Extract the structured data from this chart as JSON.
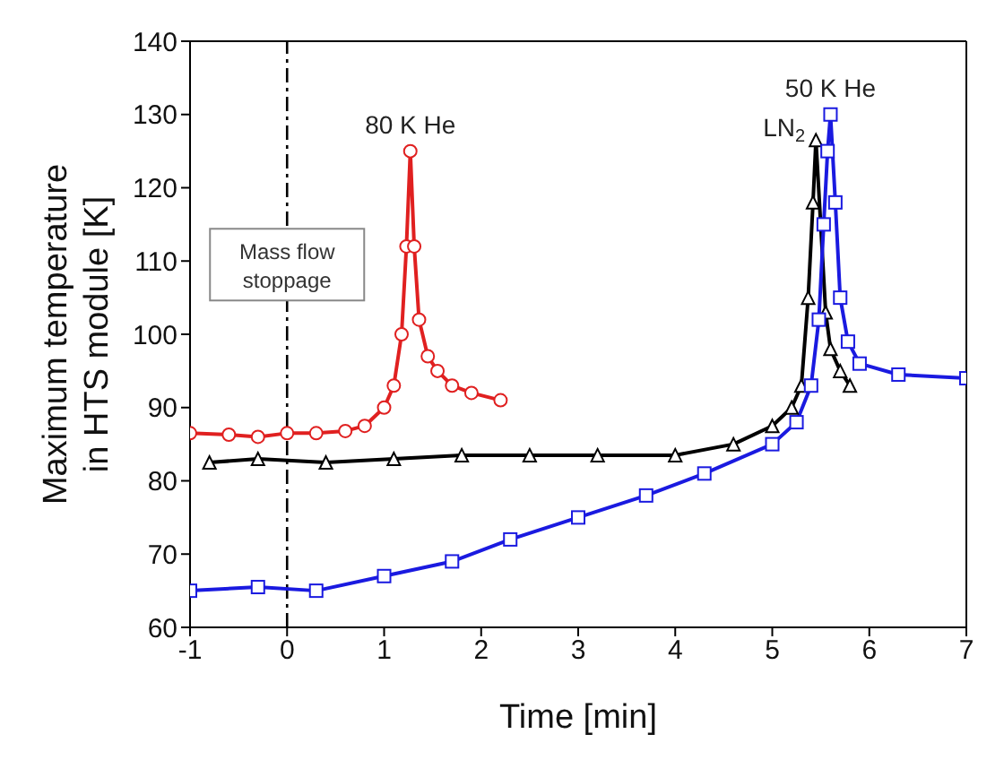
{
  "chart_data": {
    "type": "line",
    "xlabel": "Time  [min]",
    "ylabel": "Maximum temperature\nin HTS module  [K]",
    "xlim": [
      -1,
      7
    ],
    "xticks": [
      -1,
      0,
      1,
      2,
      3,
      4,
      5,
      6,
      7
    ],
    "ylim": [
      60,
      140
    ],
    "yticks": [
      60,
      70,
      80,
      90,
      100,
      110,
      120,
      130,
      140
    ],
    "line_style": "solid",
    "ref_lines": [
      {
        "axis": "x",
        "value": 0,
        "label": "Mass flow\nstoppage",
        "color": "#000000",
        "line_style": "dashdot"
      }
    ],
    "series": [
      {
        "name": "80 K He",
        "color": "#e02020",
        "marker": "circle",
        "x": [
          -1,
          -0.6,
          -0.3,
          0,
          0.3,
          0.6,
          0.8,
          1.0,
          1.1,
          1.18,
          1.23,
          1.27,
          1.31,
          1.36,
          1.45,
          1.55,
          1.7,
          1.9,
          2.2
        ],
        "values": [
          86.5,
          86.3,
          86,
          86.5,
          86.5,
          86.8,
          87.5,
          90,
          93,
          100,
          112,
          125,
          112,
          102,
          97,
          95,
          93,
          92,
          91
        ]
      },
      {
        "name": "LN$_{2}$",
        "color": "#000000",
        "marker": "triangle",
        "x": [
          -0.8,
          -0.3,
          0.4,
          1.1,
          1.8,
          2.5,
          3.2,
          4.0,
          4.6,
          5.0,
          5.2,
          5.3,
          5.37,
          5.42,
          5.45,
          5.55,
          5.6,
          5.7,
          5.8
        ],
        "values": [
          82.5,
          83,
          82.5,
          83,
          83.5,
          83.5,
          83.5,
          83.5,
          85,
          87.5,
          90,
          93,
          105,
          118,
          126.5,
          103,
          98,
          95,
          93
        ]
      },
      {
        "name": "50 K He",
        "color": "#1a1ae0",
        "marker": "square",
        "x": [
          -1,
          -0.3,
          0.3,
          1.0,
          1.7,
          2.3,
          3.0,
          3.7,
          4.3,
          5.0,
          5.25,
          5.4,
          5.48,
          5.53,
          5.57,
          5.6,
          5.65,
          5.7,
          5.78,
          5.9,
          6.3,
          7.0
        ],
        "values": [
          65,
          65.5,
          65,
          67,
          69,
          72,
          75,
          78,
          81,
          85,
          88,
          93,
          102,
          115,
          125,
          130,
          118,
          105,
          99,
          96,
          94.5,
          94
        ]
      }
    ]
  }
}
